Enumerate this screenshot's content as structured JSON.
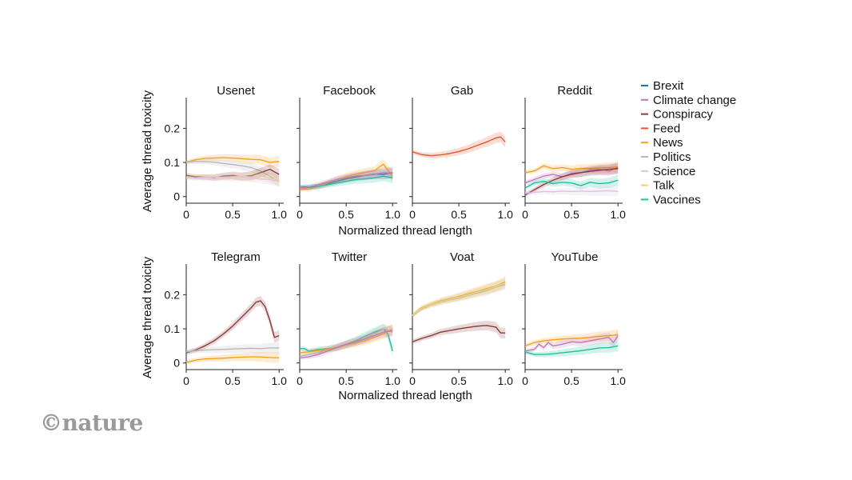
{
  "chart_data": {
    "type": "line",
    "y_axis_label": "Average thread toxicity",
    "x_axis_label": "Normalized thread length",
    "x_ticks": [
      "0",
      "0.5",
      "1.0"
    ],
    "y_ticks": [
      "0",
      "0.1",
      "0.2"
    ],
    "xlim": [
      0,
      1.05
    ],
    "ylim": [
      -0.01,
      0.29
    ],
    "legend_position": "right",
    "colors": {
      "Brexit": "#2a6f97",
      "Climate change": "#c07ab8",
      "Conspiracy": "#8b3a3a",
      "Feed": "#e8552b",
      "News": "#f4a21e",
      "Politics": "#b8b8b8",
      "Science": "#dcc3e6",
      "Talk": "#ecd27a",
      "Vaccines": "#1fc29a"
    },
    "legend": [
      "Brexit",
      "Climate change",
      "Conspiracy",
      "Feed",
      "News",
      "Politics",
      "Science",
      "Talk",
      "Vaccines"
    ],
    "panels": [
      {
        "title": "Usenet",
        "series": [
          {
            "name": "News",
            "x": [
              0,
              0.1,
              0.2,
              0.3,
              0.4,
              0.5,
              0.6,
              0.7,
              0.8,
              0.9,
              1.0
            ],
            "y": [
              0.1,
              0.108,
              0.112,
              0.113,
              0.114,
              0.113,
              0.111,
              0.109,
              0.108,
              0.1,
              0.103
            ]
          },
          {
            "name": "Politics",
            "x": [
              0,
              0.1,
              0.2,
              0.3,
              0.4,
              0.5,
              0.6,
              0.7,
              0.8,
              0.9,
              1.0
            ],
            "y": [
              0.101,
              0.103,
              0.102,
              0.101,
              0.097,
              0.094,
              0.09,
              0.085,
              0.075,
              0.06,
              0.045
            ]
          },
          {
            "name": "Conspiracy",
            "x": [
              0,
              0.1,
              0.2,
              0.3,
              0.4,
              0.5,
              0.6,
              0.7,
              0.8,
              0.9,
              1.0
            ],
            "y": [
              0.062,
              0.058,
              0.057,
              0.055,
              0.06,
              0.062,
              0.058,
              0.061,
              0.07,
              0.08,
              0.065
            ]
          },
          {
            "name": "Talk",
            "x": [
              0,
              0.1,
              0.2,
              0.3,
              0.4,
              0.5,
              0.6,
              0.7,
              0.8,
              0.9,
              1.0
            ],
            "y": [
              0.056,
              0.055,
              0.057,
              0.058,
              0.056,
              0.058,
              0.06,
              0.057,
              0.06,
              0.055,
              0.047
            ]
          },
          {
            "name": "Science",
            "x": [
              0,
              0.1,
              0.2,
              0.3,
              0.4,
              0.5,
              0.6,
              0.7,
              0.8,
              0.9,
              1.0
            ],
            "y": [
              0.055,
              0.054,
              0.055,
              0.056,
              0.057,
              0.056,
              0.058,
              0.055,
              0.052,
              0.05,
              0.045
            ]
          }
        ]
      },
      {
        "title": "Facebook",
        "series": [
          {
            "name": "Brexit",
            "x": [
              0,
              0.1,
              0.2,
              0.3,
              0.4,
              0.5,
              0.6,
              0.7,
              0.8,
              0.9,
              1.0
            ],
            "y": [
              0.025,
              0.027,
              0.03,
              0.038,
              0.045,
              0.052,
              0.057,
              0.062,
              0.066,
              0.065,
              0.07
            ]
          },
          {
            "name": "News",
            "x": [
              0,
              0.1,
              0.2,
              0.3,
              0.4,
              0.5,
              0.6,
              0.7,
              0.8,
              0.9,
              1.0
            ],
            "y": [
              0.02,
              0.022,
              0.03,
              0.04,
              0.05,
              0.058,
              0.065,
              0.07,
              0.075,
              0.095,
              0.06
            ]
          },
          {
            "name": "Vaccines",
            "x": [
              0,
              0.1,
              0.2,
              0.3,
              0.4,
              0.5,
              0.6,
              0.7,
              0.8,
              0.9,
              1.0
            ],
            "y": [
              0.03,
              0.028,
              0.03,
              0.035,
              0.04,
              0.045,
              0.05,
              0.052,
              0.055,
              0.06,
              0.055
            ]
          },
          {
            "name": "Climate change",
            "x": [
              0,
              0.1,
              0.2,
              0.3,
              0.4,
              0.5,
              0.6,
              0.7,
              0.8,
              0.9,
              1.0
            ],
            "y": [
              0.025,
              0.028,
              0.035,
              0.042,
              0.05,
              0.055,
              0.06,
              0.062,
              0.065,
              0.07,
              0.068
            ]
          }
        ]
      },
      {
        "title": "Gab",
        "series": [
          {
            "name": "Feed",
            "x": [
              0,
              0.1,
              0.2,
              0.3,
              0.4,
              0.5,
              0.6,
              0.7,
              0.8,
              0.9,
              0.95,
              1.0
            ],
            "y": [
              0.131,
              0.123,
              0.12,
              0.122,
              0.126,
              0.132,
              0.14,
              0.15,
              0.16,
              0.172,
              0.175,
              0.16
            ]
          }
        ]
      },
      {
        "title": "Reddit",
        "series": [
          {
            "name": "News",
            "x": [
              0,
              0.1,
              0.2,
              0.3,
              0.4,
              0.5,
              0.6,
              0.7,
              0.8,
              0.9,
              1.0
            ],
            "y": [
              0.07,
              0.075,
              0.09,
              0.082,
              0.085,
              0.08,
              0.083,
              0.082,
              0.084,
              0.085,
              0.087
            ]
          },
          {
            "name": "Climate change",
            "x": [
              0,
              0.1,
              0.2,
              0.3,
              0.4,
              0.5,
              0.6,
              0.7,
              0.8,
              0.9,
              1.0
            ],
            "y": [
              0.04,
              0.05,
              0.06,
              0.065,
              0.058,
              0.068,
              0.07,
              0.078,
              0.08,
              0.075,
              0.085
            ]
          },
          {
            "name": "Conspiracy",
            "x": [
              0,
              0.1,
              0.2,
              0.3,
              0.4,
              0.5,
              0.6,
              0.7,
              0.8,
              0.9,
              1.0
            ],
            "y": [
              0.005,
              0.02,
              0.035,
              0.048,
              0.058,
              0.065,
              0.07,
              0.074,
              0.077,
              0.08,
              0.082
            ]
          },
          {
            "name": "Vaccines",
            "x": [
              0,
              0.1,
              0.2,
              0.3,
              0.4,
              0.5,
              0.6,
              0.7,
              0.8,
              0.9,
              1.0
            ],
            "y": [
              0.025,
              0.04,
              0.045,
              0.038,
              0.042,
              0.04,
              0.032,
              0.042,
              0.038,
              0.04,
              0.048
            ]
          },
          {
            "name": "Science",
            "x": [
              0,
              0.1,
              0.2,
              0.3,
              0.4,
              0.5,
              0.6,
              0.7,
              0.8,
              0.9,
              1.0
            ],
            "y": [
              0.01,
              0.012,
              0.015,
              0.014,
              0.016,
              0.015,
              0.016,
              0.015,
              0.016,
              0.017,
              0.015
            ]
          }
        ]
      },
      {
        "title": "Telegram",
        "series": [
          {
            "name": "Conspiracy",
            "x": [
              0,
              0.1,
              0.2,
              0.3,
              0.4,
              0.5,
              0.6,
              0.7,
              0.75,
              0.8,
              0.85,
              0.9,
              0.95,
              1.0
            ],
            "y": [
              0.03,
              0.038,
              0.05,
              0.065,
              0.085,
              0.108,
              0.135,
              0.162,
              0.178,
              0.182,
              0.165,
              0.125,
              0.075,
              0.08
            ]
          },
          {
            "name": "Politics",
            "x": [
              0,
              0.1,
              0.2,
              0.3,
              0.4,
              0.5,
              0.6,
              0.7,
              0.8,
              0.9,
              1.0
            ],
            "y": [
              0.033,
              0.036,
              0.038,
              0.039,
              0.04,
              0.041,
              0.042,
              0.043,
              0.042,
              0.044,
              0.044
            ]
          },
          {
            "name": "News",
            "x": [
              0,
              0.1,
              0.2,
              0.3,
              0.4,
              0.5,
              0.6,
              0.7,
              0.8,
              0.9,
              1.0
            ],
            "y": [
              0.002,
              0.008,
              0.012,
              0.013,
              0.014,
              0.016,
              0.017,
              0.018,
              0.018,
              0.016,
              0.015
            ]
          }
        ]
      },
      {
        "title": "Twitter",
        "series": [
          {
            "name": "Vaccines",
            "x": [
              0,
              0.05,
              0.1,
              0.2,
              0.3,
              0.4,
              0.5,
              0.6,
              0.7,
              0.8,
              0.9,
              0.95,
              1.0
            ],
            "y": [
              0.042,
              0.042,
              0.035,
              0.04,
              0.042,
              0.045,
              0.055,
              0.065,
              0.078,
              0.09,
              0.1,
              0.085,
              0.035
            ]
          },
          {
            "name": "Politics",
            "x": [
              0,
              0.1,
              0.2,
              0.3,
              0.4,
              0.5,
              0.6,
              0.7,
              0.8,
              0.9,
              1.0
            ],
            "y": [
              0.02,
              0.025,
              0.03,
              0.04,
              0.048,
              0.055,
              0.062,
              0.072,
              0.085,
              0.1,
              0.09
            ]
          },
          {
            "name": "News",
            "x": [
              0,
              0.1,
              0.2,
              0.3,
              0.4,
              0.5,
              0.6,
              0.7,
              0.8,
              0.9,
              1.0
            ],
            "y": [
              0.03,
              0.033,
              0.036,
              0.04,
              0.045,
              0.052,
              0.058,
              0.065,
              0.075,
              0.085,
              0.1
            ]
          },
          {
            "name": "Climate change",
            "x": [
              0,
              0.1,
              0.2,
              0.3,
              0.4,
              0.5,
              0.6,
              0.7,
              0.8,
              0.9,
              1.0
            ],
            "y": [
              0.015,
              0.018,
              0.025,
              0.035,
              0.045,
              0.055,
              0.062,
              0.07,
              0.08,
              0.09,
              0.095
            ]
          }
        ]
      },
      {
        "title": "Voat",
        "series": [
          {
            "name": "News",
            "x": [
              0,
              0.1,
              0.2,
              0.3,
              0.4,
              0.5,
              0.6,
              0.7,
              0.8,
              0.9,
              1.0
            ],
            "y": [
              0.14,
              0.162,
              0.172,
              0.182,
              0.188,
              0.195,
              0.203,
              0.21,
              0.218,
              0.225,
              0.238
            ]
          },
          {
            "name": "Politics",
            "x": [
              0,
              0.1,
              0.2,
              0.3,
              0.4,
              0.5,
              0.6,
              0.7,
              0.8,
              0.9,
              1.0
            ],
            "y": [
              0.138,
              0.158,
              0.17,
              0.178,
              0.185,
              0.19,
              0.198,
              0.205,
              0.212,
              0.222,
              0.23
            ]
          },
          {
            "name": "Talk",
            "x": [
              0,
              0.1,
              0.2,
              0.3,
              0.4,
              0.5,
              0.6,
              0.7,
              0.8,
              0.9,
              1.0
            ],
            "y": [
              0.14,
              0.16,
              0.171,
              0.18,
              0.186,
              0.193,
              0.2,
              0.208,
              0.215,
              0.224,
              0.235
            ]
          },
          {
            "name": "Conspiracy",
            "x": [
              0,
              0.1,
              0.2,
              0.3,
              0.4,
              0.5,
              0.6,
              0.7,
              0.8,
              0.9,
              0.95,
              1.0
            ],
            "y": [
              0.062,
              0.072,
              0.08,
              0.09,
              0.095,
              0.1,
              0.104,
              0.108,
              0.11,
              0.105,
              0.088,
              0.088
            ]
          }
        ]
      },
      {
        "title": "YouTube",
        "series": [
          {
            "name": "News",
            "x": [
              0,
              0.1,
              0.2,
              0.3,
              0.4,
              0.5,
              0.6,
              0.7,
              0.8,
              0.9,
              1.0
            ],
            "y": [
              0.05,
              0.06,
              0.065,
              0.068,
              0.07,
              0.072,
              0.073,
              0.075,
              0.078,
              0.08,
              0.083
            ]
          },
          {
            "name": "Climate change",
            "x": [
              0,
              0.1,
              0.15,
              0.2,
              0.25,
              0.3,
              0.4,
              0.5,
              0.6,
              0.7,
              0.8,
              0.9,
              0.95,
              1.0
            ],
            "y": [
              0.035,
              0.04,
              0.055,
              0.045,
              0.06,
              0.05,
              0.055,
              0.062,
              0.06,
              0.065,
              0.07,
              0.075,
              0.06,
              0.08
            ]
          },
          {
            "name": "Vaccines",
            "x": [
              0,
              0.1,
              0.2,
              0.3,
              0.4,
              0.5,
              0.6,
              0.7,
              0.8,
              0.9,
              1.0
            ],
            "y": [
              0.032,
              0.025,
              0.025,
              0.027,
              0.03,
              0.033,
              0.036,
              0.04,
              0.044,
              0.045,
              0.05
            ]
          }
        ]
      }
    ]
  },
  "brand": {
    "logo_text": "©nature"
  }
}
